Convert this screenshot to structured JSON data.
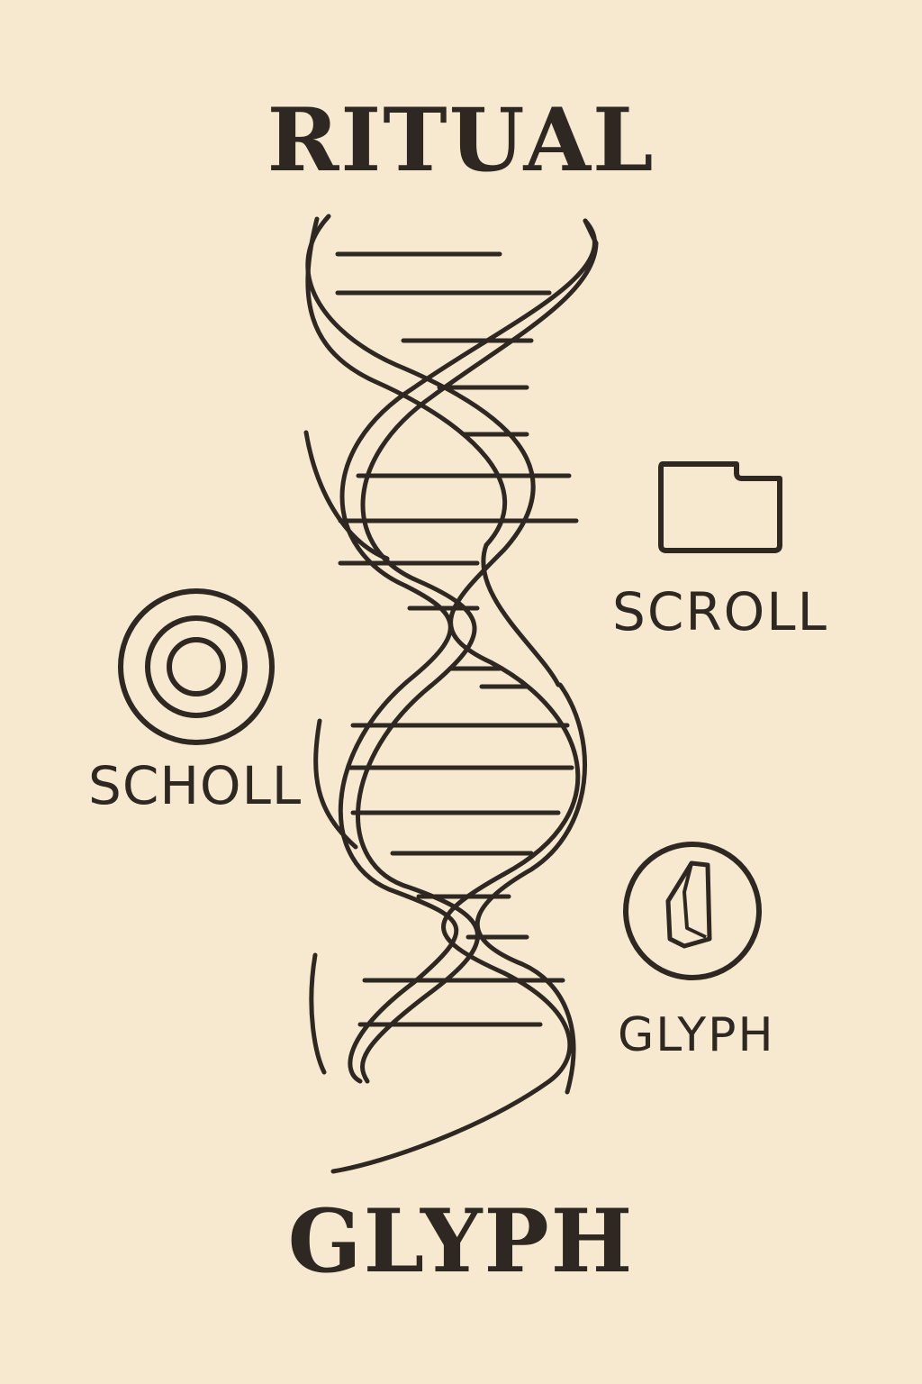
{
  "title": "RITUAL",
  "subtitle": "GLYPH",
  "labels": {
    "scroll_right": "SCROLL",
    "scroll_left": "SCHOLL",
    "glyph_right": "GLYPH"
  },
  "colors": {
    "background": "#f6e9cf",
    "ink": "#2f2722"
  },
  "icons": [
    "dna-helix-icon",
    "folder-icon",
    "concentric-circles-icon",
    "crystal-glyph-icon"
  ]
}
